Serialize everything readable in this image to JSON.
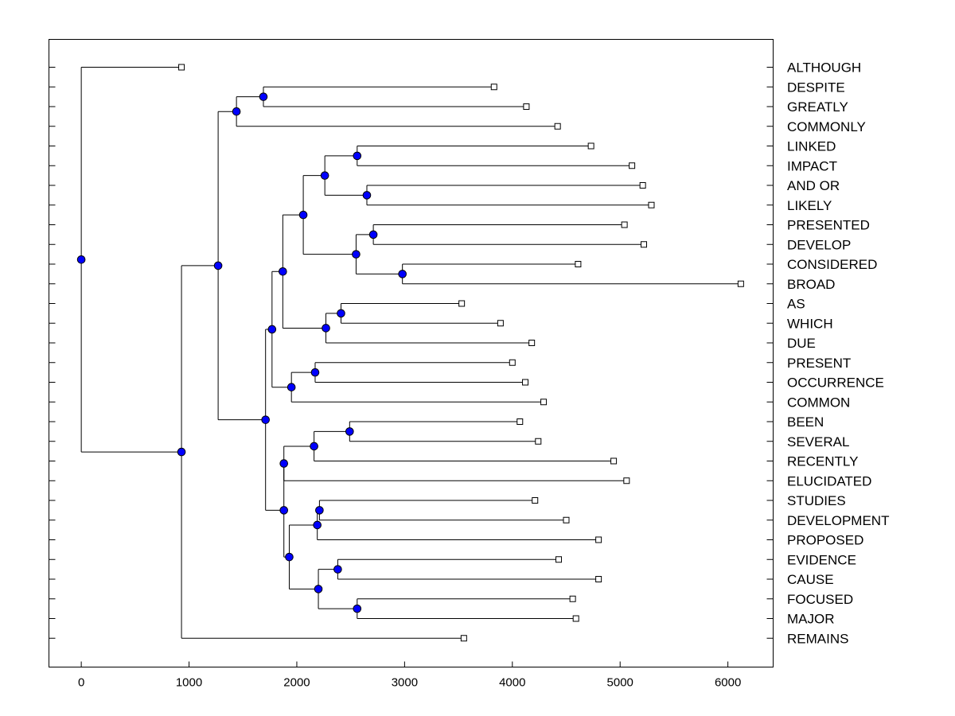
{
  "chart_data": {
    "type": "dendrogram",
    "title": "",
    "xlabel": "",
    "ylabel": "",
    "x_ticks": [
      0,
      1000,
      2000,
      3000,
      4000,
      5000,
      6000
    ],
    "xlim": [
      -300,
      6420
    ],
    "leaf_order": [
      "ALTHOUGH",
      "DESPITE",
      "GREATLY",
      "COMMONLY",
      "LINKED",
      "IMPACT",
      "AND OR",
      "LIKELY",
      "PRESENTED",
      "DEVELOP",
      "CONSIDERED",
      "BROAD",
      "AS",
      "WHICH",
      "DUE",
      "PRESENT",
      "OCCURRENCE",
      "COMMON",
      "BEEN",
      "SEVERAL",
      "RECENTLY",
      "ELUCIDATED",
      "STUDIES",
      "DEVELOPMENT",
      "PROPOSED",
      "EVIDENCE",
      "CAUSE",
      "FOCUSED",
      "MAJOR",
      "REMAINS"
    ],
    "leaves": [
      {
        "label": "ALTHOUGH",
        "value": 930
      },
      {
        "label": "DESPITE",
        "value": 3830
      },
      {
        "label": "GREATLY",
        "value": 4130
      },
      {
        "label": "COMMONLY",
        "value": 4420
      },
      {
        "label": "LINKED",
        "value": 4730
      },
      {
        "label": "IMPACT",
        "value": 5110
      },
      {
        "label": "AND OR",
        "value": 5210
      },
      {
        "label": "LIKELY",
        "value": 5290
      },
      {
        "label": "PRESENTED",
        "value": 5040
      },
      {
        "label": "DEVELOP",
        "value": 5220
      },
      {
        "label": "CONSIDERED",
        "value": 4610
      },
      {
        "label": "BROAD",
        "value": 6120
      },
      {
        "label": "AS",
        "value": 3530
      },
      {
        "label": "WHICH",
        "value": 3890
      },
      {
        "label": "DUE",
        "value": 4180
      },
      {
        "label": "PRESENT",
        "value": 4000
      },
      {
        "label": "OCCURRENCE",
        "value": 4120
      },
      {
        "label": "COMMON",
        "value": 4290
      },
      {
        "label": "BEEN",
        "value": 4070
      },
      {
        "label": "SEVERAL",
        "value": 4240
      },
      {
        "label": "RECENTLY",
        "value": 4940
      },
      {
        "label": "ELUCIDATED",
        "value": 5060
      },
      {
        "label": "STUDIES",
        "value": 4210
      },
      {
        "label": "DEVELOPMENT",
        "value": 4500
      },
      {
        "label": "PROPOSED",
        "value": 4800
      },
      {
        "label": "EVIDENCE",
        "value": 4430
      },
      {
        "label": "CAUSE",
        "value": 4800
      },
      {
        "label": "FOCUSED",
        "value": 4560
      },
      {
        "label": "MAJOR",
        "value": 4590
      },
      {
        "label": "REMAINS",
        "value": 3550
      }
    ],
    "tree": {
      "h": 0,
      "c": [
        {
          "leaf": "ALTHOUGH"
        },
        {
          "h": 930,
          "c": [
            {
              "h": 1270,
              "c": [
                {
                  "h": 1440,
                  "c": [
                    {
                      "h": 1690,
                      "c": [
                        {
                          "leaf": "DESPITE"
                        },
                        {
                          "leaf": "GREATLY"
                        }
                      ]
                    },
                    {
                      "leaf": "COMMONLY"
                    }
                  ]
                },
                {
                  "h": 1710,
                  "c": [
                    {
                      "h": 1770,
                      "c": [
                        {
                          "h": 1870,
                          "c": [
                            {
                              "h": 2060,
                              "c": [
                                {
                                  "h": 2260,
                                  "c": [
                                    {
                                      "h": 2560,
                                      "c": [
                                        {
                                          "leaf": "LINKED"
                                        },
                                        {
                                          "leaf": "IMPACT"
                                        }
                                      ]
                                    },
                                    {
                                      "h": 2650,
                                      "c": [
                                        {
                                          "leaf": "AND OR"
                                        },
                                        {
                                          "leaf": "LIKELY"
                                        }
                                      ]
                                    }
                                  ]
                                },
                                {
                                  "h": 2550,
                                  "c": [
                                    {
                                      "h": 2710,
                                      "c": [
                                        {
                                          "leaf": "PRESENTED"
                                        },
                                        {
                                          "leaf": "DEVELOP"
                                        }
                                      ]
                                    },
                                    {
                                      "h": 2980,
                                      "c": [
                                        {
                                          "leaf": "CONSIDERED"
                                        },
                                        {
                                          "leaf": "BROAD"
                                        }
                                      ]
                                    }
                                  ]
                                }
                              ]
                            },
                            {
                              "h": 2270,
                              "c": [
                                {
                                  "h": 2410,
                                  "c": [
                                    {
                                      "leaf": "AS"
                                    },
                                    {
                                      "leaf": "WHICH"
                                    }
                                  ]
                                },
                                {
                                  "leaf": "DUE"
                                }
                              ]
                            }
                          ]
                        },
                        {
                          "h": 1950,
                          "c": [
                            {
                              "h": 2170,
                              "c": [
                                {
                                  "leaf": "PRESENT"
                                },
                                {
                                  "leaf": "OCCURRENCE"
                                }
                              ]
                            },
                            {
                              "leaf": "COMMON"
                            }
                          ]
                        }
                      ]
                    },
                    {
                      "h": 1880,
                      "c": [
                        {
                          "h": 1880,
                          "c": [
                            {
                              "h": 2160,
                              "c": [
                                {
                                  "h": 2490,
                                  "c": [
                                    {
                                      "leaf": "BEEN"
                                    },
                                    {
                                      "leaf": "SEVERAL"
                                    }
                                  ]
                                },
                                {
                                  "leaf": "RECENTLY"
                                }
                              ]
                            },
                            {
                              "leaf": "ELUCIDATED"
                            }
                          ]
                        },
                        {
                          "h": 1930,
                          "c": [
                            {
                              "h": 2190,
                              "c": [
                                {
                                  "h": 2210,
                                  "c": [
                                    {
                                      "leaf": "STUDIES"
                                    },
                                    {
                                      "leaf": "DEVELOPMENT"
                                    }
                                  ]
                                },
                                {
                                  "leaf": "PROPOSED"
                                }
                              ]
                            },
                            {
                              "h": 2200,
                              "c": [
                                {
                                  "h": 2380,
                                  "c": [
                                    {
                                      "leaf": "EVIDENCE"
                                    },
                                    {
                                      "leaf": "CAUSE"
                                    }
                                  ]
                                },
                                {
                                  "h": 2560,
                                  "c": [
                                    {
                                      "leaf": "FOCUSED"
                                    },
                                    {
                                      "leaf": "MAJOR"
                                    }
                                  ]
                                }
                              ]
                            }
                          ]
                        }
                      ]
                    }
                  ]
                }
              ]
            },
            {
              "leaf": "REMAINS"
            }
          ]
        }
      ]
    },
    "colors": {
      "node": "#0000ff",
      "line": "#000000",
      "leaf_box": "#ffffff"
    }
  }
}
